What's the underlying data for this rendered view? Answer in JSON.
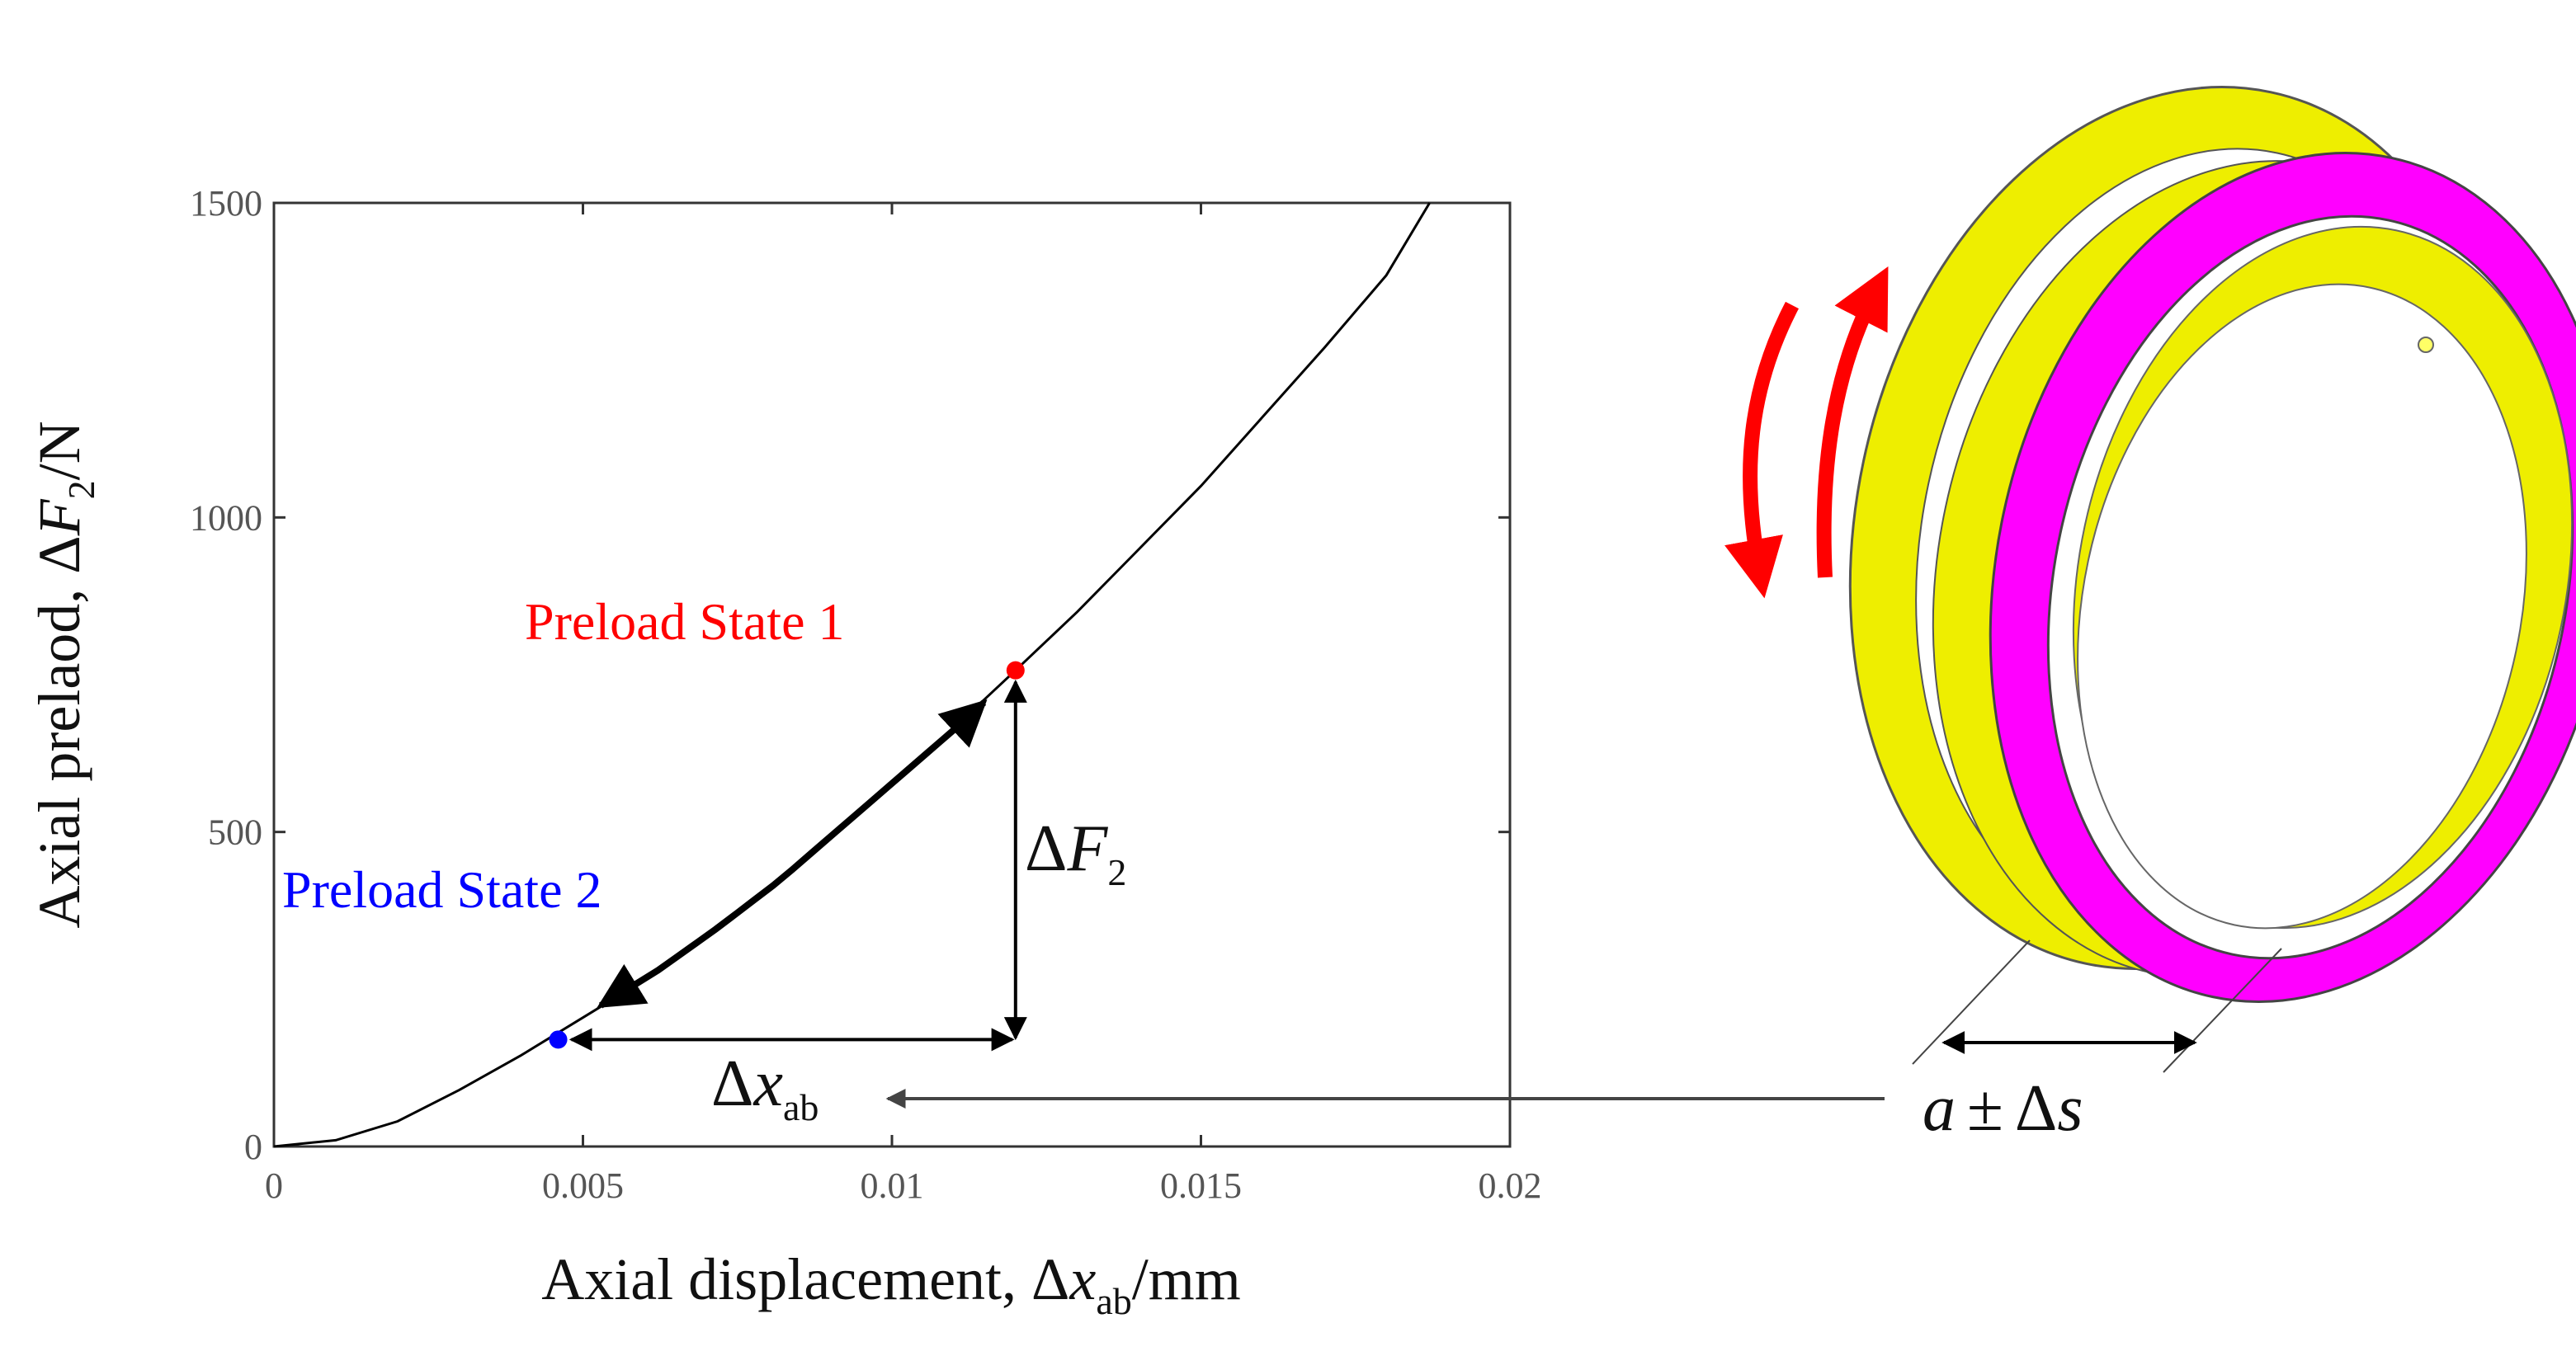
{
  "chart_data": {
    "type": "line",
    "xlabel": {
      "prefix": "Axial displacement, ",
      "delta": "Δ",
      "var": "x",
      "sub": "ab",
      "suffix": "/mm"
    },
    "ylabel": {
      "prefix": "Axial prelaod, ",
      "delta": "Δ",
      "var": "F",
      "sub": "2",
      "suffix": "/N"
    },
    "xlim": [
      0,
      0.02
    ],
    "ylim": [
      0,
      1500
    ],
    "xticks": [
      0,
      0.005,
      0.01,
      0.015,
      0.02
    ],
    "xtick_labels": [
      "0",
      "0.005",
      "0.01",
      "0.015",
      "0.02"
    ],
    "yticks": [
      0,
      500,
      1000,
      1500
    ],
    "ytick_labels": [
      "0",
      "500",
      "1000",
      "1500"
    ],
    "grid": false,
    "series": [
      {
        "x": [
          0,
          0.001,
          0.002,
          0.003,
          0.004,
          0.005,
          0.006,
          0.007,
          0.008,
          0.009,
          0.01,
          0.011,
          0.012,
          0.013,
          0.014,
          0.015,
          0.016,
          0.017,
          0.018,
          0.0187
        ],
        "y": [
          0,
          10,
          40,
          90,
          145,
          205,
          265,
          335,
          410,
          495,
          580,
          665,
          757,
          850,
          950,
          1050,
          1160,
          1270,
          1385,
          1500
        ]
      }
    ],
    "points": [
      {
        "label": "Preload State 1",
        "x": 0.012,
        "y": 757,
        "color": "#ff0000"
      },
      {
        "label": "Preload State 2",
        "x": 0.0046,
        "y": 170,
        "color": "#0000ff"
      }
    ],
    "annotations": {
      "delta_f": {
        "delta": "Δ",
        "var": "F",
        "sub": "2"
      },
      "delta_x": {
        "delta": "Δ",
        "var": "x",
        "sub": "ab"
      },
      "ring_label": {
        "var_a": "a",
        "op": "±",
        "delta": "Δ",
        "var_s": "s"
      }
    },
    "colors": {
      "curve": "#000000",
      "ring_outer": "#ff00ff",
      "ring_inner": "#f0f000",
      "rotation_arrows": "#ff0000"
    }
  }
}
